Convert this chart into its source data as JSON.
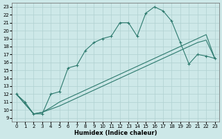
{
  "xlabel": "Humidex (Indice chaleur)",
  "xlim": [
    -0.5,
    23.5
  ],
  "ylim": [
    8.5,
    23.5
  ],
  "xticks": [
    0,
    1,
    2,
    3,
    4,
    5,
    6,
    7,
    8,
    9,
    10,
    11,
    12,
    13,
    14,
    15,
    16,
    17,
    18,
    19,
    20,
    21,
    22,
    23
  ],
  "yticks": [
    9,
    10,
    11,
    12,
    13,
    14,
    15,
    16,
    17,
    18,
    19,
    20,
    21,
    22,
    23
  ],
  "bg_color": "#cde8e8",
  "line_color": "#2d7a6e",
  "grid_color": "#b0d0d0",
  "line1_x": [
    0,
    1,
    2,
    3,
    4,
    5,
    6,
    7,
    8,
    9,
    10,
    11,
    12,
    13,
    14,
    15,
    16,
    17,
    18,
    19,
    20,
    21,
    22,
    23
  ],
  "line1_y": [
    12,
    11,
    9.5,
    9.5,
    12,
    12.3,
    15.3,
    15.6,
    17.5,
    18.5,
    19.0,
    19.3,
    21.0,
    21.0,
    19.3,
    22.2,
    23.0,
    22.5,
    21.2,
    18.5,
    15.8,
    17.0,
    16.8,
    16.5
  ],
  "line2_x": [
    0,
    2,
    3,
    4,
    5,
    6,
    7,
    8,
    9,
    10,
    11,
    12,
    13,
    14,
    15,
    16,
    17,
    18,
    19,
    20,
    21,
    22,
    23
  ],
  "line2_y": [
    12,
    9.5,
    9.7,
    10.1,
    10.5,
    11.0,
    11.5,
    12.0,
    12.5,
    13.0,
    13.5,
    14.0,
    14.5,
    15.0,
    15.5,
    16.0,
    16.5,
    17.0,
    17.5,
    18.0,
    18.5,
    18.8,
    16.5
  ],
  "line3_x": [
    0,
    2,
    3,
    4,
    5,
    6,
    7,
    8,
    9,
    10,
    11,
    12,
    13,
    14,
    15,
    16,
    17,
    18,
    19,
    20,
    21,
    22,
    23
  ],
  "line3_y": [
    12,
    9.5,
    9.7,
    10.3,
    11.0,
    11.5,
    12.0,
    12.5,
    13.0,
    13.5,
    14.0,
    14.5,
    15.0,
    15.5,
    16.0,
    16.5,
    17.0,
    17.5,
    18.0,
    18.5,
    19.0,
    19.5,
    16.5
  ]
}
